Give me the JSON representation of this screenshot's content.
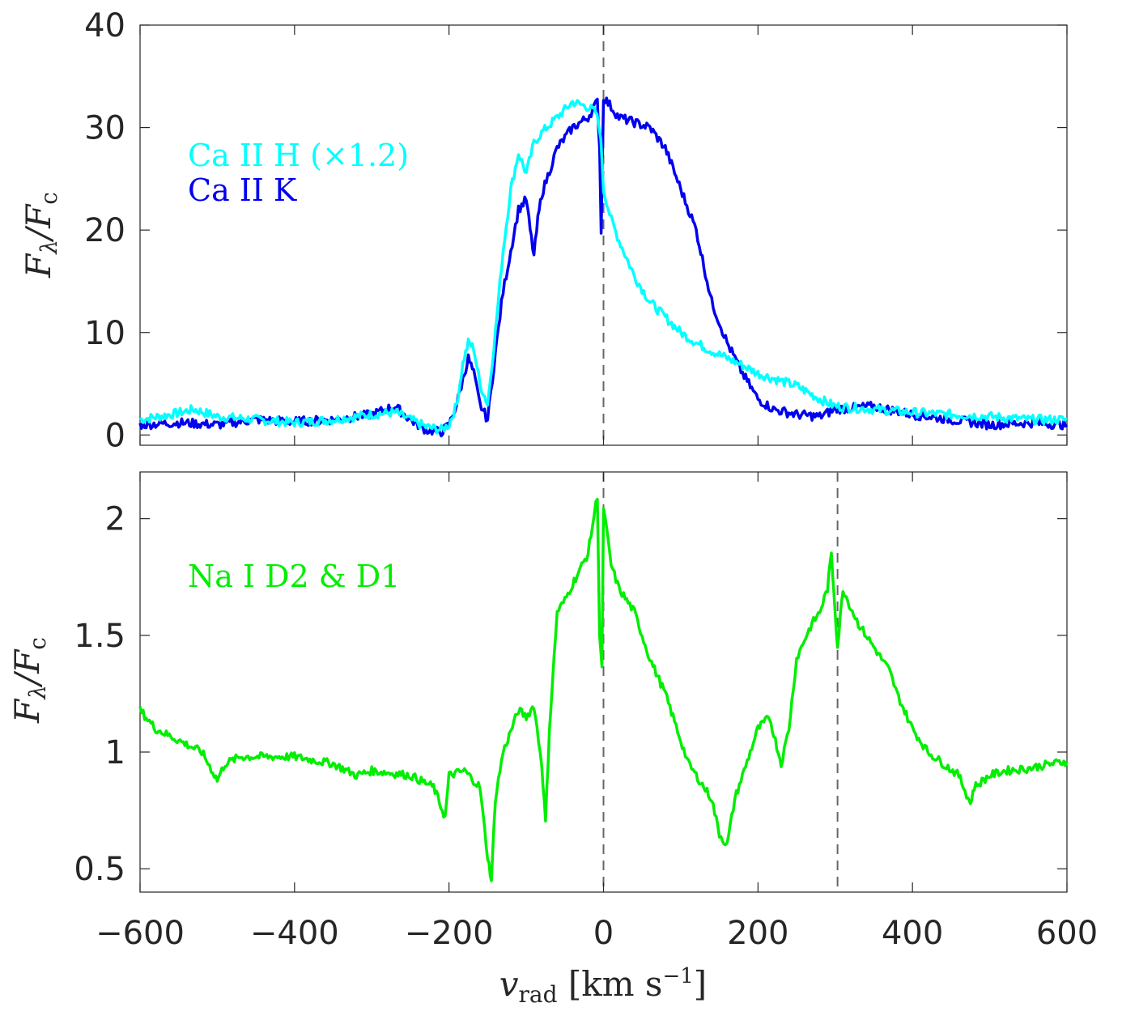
{
  "chart_data": [
    {
      "type": "line",
      "panel": "top",
      "xlim": [
        -600,
        600
      ],
      "ylim": [
        -1,
        40
      ],
      "yticks": [
        0,
        10,
        20,
        30,
        40
      ],
      "ytick_labels": [
        "0",
        "10",
        "20",
        "30",
        "40"
      ],
      "ylabel": "F_λ/F_c",
      "vlines": [
        0
      ],
      "legend": [
        {
          "label": "Ca II H (×1.2)",
          "color": "#00ffff"
        },
        {
          "label": "Ca II K",
          "color": "#0000ee"
        }
      ],
      "series": [
        {
          "name": "Ca II H (×1.2)",
          "color": "#00ffff",
          "x": [
            -600,
            -560,
            -530,
            -500,
            -450,
            -400,
            -350,
            -300,
            -270,
            -250,
            -230,
            -210,
            -200,
            -190,
            -182,
            -175,
            -168,
            -160,
            -150,
            -140,
            -130,
            -120,
            -110,
            -100,
            -90,
            -80,
            -60,
            -40,
            -20,
            -10,
            -5,
            -2,
            0,
            10,
            20,
            40,
            60,
            80,
            100,
            120,
            140,
            160,
            180,
            200,
            220,
            250,
            280,
            300,
            350,
            400,
            450,
            500,
            550,
            600
          ],
          "y": [
            1.5,
            2.0,
            2.5,
            1.8,
            1.5,
            1.2,
            1.5,
            2.0,
            2.2,
            1.5,
            0.8,
            0.5,
            1.0,
            3.0,
            7.0,
            9.0,
            8.5,
            5.0,
            3.0,
            10.0,
            18.0,
            24.0,
            27.5,
            25.5,
            28.5,
            29.5,
            31.0,
            32.5,
            32.0,
            31.5,
            30.0,
            27.0,
            24.0,
            21.0,
            19.0,
            15.5,
            13.0,
            11.5,
            10.0,
            9.0,
            8.2,
            7.5,
            6.8,
            6.0,
            5.5,
            4.8,
            3.5,
            2.8,
            2.5,
            2.2,
            2.0,
            1.8,
            1.5,
            1.5
          ]
        },
        {
          "name": "Ca II K",
          "color": "#0000ee",
          "x": [
            -600,
            -550,
            -500,
            -450,
            -400,
            -350,
            -300,
            -270,
            -250,
            -230,
            -210,
            -200,
            -190,
            -180,
            -175,
            -168,
            -160,
            -150,
            -140,
            -130,
            -120,
            -110,
            -100,
            -95,
            -90,
            -85,
            -80,
            -60,
            -40,
            -20,
            -8,
            -5,
            -3,
            0,
            10,
            20,
            40,
            60,
            80,
            100,
            120,
            140,
            160,
            180,
            200,
            220,
            250,
            280,
            300,
            350,
            400,
            450,
            500,
            550,
            600
          ],
          "y": [
            1.0,
            1.2,
            1.0,
            1.5,
            1.3,
            1.5,
            2.0,
            2.8,
            1.5,
            0.5,
            0.3,
            1.0,
            3.0,
            6.0,
            7.5,
            6.0,
            3.0,
            1.5,
            8.0,
            14.0,
            18.0,
            22.0,
            23.0,
            20.0,
            17.5,
            21.0,
            23.5,
            28.0,
            30.0,
            31.0,
            32.5,
            28.0,
            20.0,
            33.0,
            32.0,
            31.0,
            30.5,
            30.0,
            28.0,
            24.0,
            20.0,
            13.0,
            9.0,
            6.0,
            3.5,
            2.5,
            2.0,
            1.8,
            2.5,
            2.8,
            2.0,
            1.5,
            1.0,
            1.2,
            1.0
          ]
        }
      ]
    },
    {
      "type": "line",
      "panel": "bottom",
      "xlim": [
        -600,
        600
      ],
      "ylim": [
        0.4,
        2.2
      ],
      "yticks": [
        0.5,
        1,
        1.5,
        2
      ],
      "ytick_labels": [
        "0.5",
        "1",
        "1.5",
        "2"
      ],
      "xticks": [
        -600,
        -400,
        -200,
        0,
        200,
        400,
        600
      ],
      "xtick_labels": [
        "−600",
        "−400",
        "−200",
        "0",
        "200",
        "400",
        "600"
      ],
      "xlabel": "v_rad [km s^−1]",
      "ylabel": "F_λ/F_c",
      "vlines": [
        0,
        303
      ],
      "legend": [
        {
          "label": "Na I D2 & D1",
          "color": "#00ee00"
        }
      ],
      "series": [
        {
          "name": "Na I D2 & D1",
          "color": "#00ee00",
          "x": [
            -600,
            -580,
            -550,
            -520,
            -500,
            -490,
            -470,
            -450,
            -400,
            -350,
            -320,
            -300,
            -250,
            -220,
            -205,
            -200,
            -180,
            -160,
            -150,
            -145,
            -140,
            -130,
            -110,
            -100,
            -90,
            -80,
            -75,
            -70,
            -60,
            -50,
            -40,
            -20,
            -8,
            -5,
            -2,
            0,
            10,
            20,
            40,
            60,
            80,
            90,
            100,
            110,
            120,
            140,
            150,
            160,
            170,
            180,
            200,
            215,
            230,
            240,
            250,
            260,
            270,
            280,
            290,
            295,
            300,
            303,
            310,
            320,
            330,
            350,
            370,
            380,
            400,
            420,
            440,
            460,
            470,
            475,
            480,
            500,
            520,
            550,
            580,
            600
          ],
          "y": [
            1.18,
            1.1,
            1.05,
            1.0,
            0.88,
            0.95,
            0.98,
            0.98,
            0.98,
            0.95,
            0.9,
            0.92,
            0.9,
            0.85,
            0.72,
            0.9,
            0.92,
            0.85,
            0.55,
            0.45,
            0.8,
            1.0,
            1.18,
            1.15,
            1.2,
            0.95,
            0.7,
            1.1,
            1.6,
            1.65,
            1.72,
            1.85,
            2.1,
            1.5,
            1.35,
            2.05,
            1.8,
            1.7,
            1.6,
            1.4,
            1.25,
            1.15,
            1.05,
            0.95,
            0.9,
            0.8,
            0.65,
            0.6,
            0.8,
            0.9,
            1.1,
            1.15,
            0.95,
            1.1,
            1.4,
            1.48,
            1.55,
            1.6,
            1.7,
            1.85,
            1.6,
            1.45,
            1.7,
            1.62,
            1.55,
            1.45,
            1.35,
            1.25,
            1.1,
            1.0,
            0.95,
            0.9,
            0.82,
            0.78,
            0.85,
            0.9,
            0.92,
            0.93,
            0.95,
            0.96
          ]
        }
      ]
    }
  ]
}
